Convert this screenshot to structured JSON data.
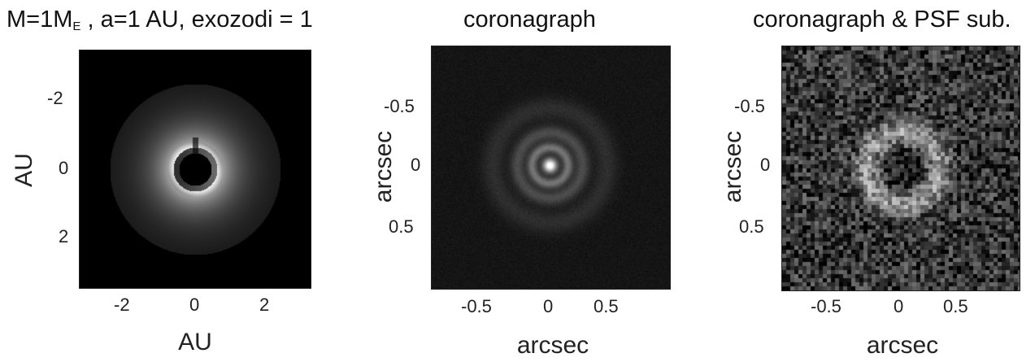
{
  "figure": {
    "panels": [
      {
        "id": "model",
        "title_main": "M=1M",
        "title_sub": "E",
        "title_rest": " , a=1 AU, exozodi = 1",
        "xlabel": "AU",
        "ylabel": "AU",
        "xticks": [
          "-2",
          "0",
          "2"
        ],
        "yticks": [
          "-2",
          "0",
          "2"
        ],
        "render": "ring-model"
      },
      {
        "id": "coronagraph",
        "title_main": "coronagraph",
        "title_sub": "",
        "title_rest": "",
        "xlabel": "arcsec",
        "ylabel": "arcsec",
        "xticks": [
          "-0.5",
          "0",
          "0.5"
        ],
        "yticks": [
          "-0.5",
          "0",
          "0.5"
        ],
        "render": "psf"
      },
      {
        "id": "psf-sub",
        "title_main": "coronagraph & PSF sub.",
        "title_sub": "",
        "title_rest": "",
        "xlabel": "arcsec",
        "ylabel": "arcsec",
        "xticks": [
          "-0.5",
          "0",
          "0.5"
        ],
        "yticks": [
          "-0.5",
          "0",
          "0.5"
        ],
        "render": "noisy-ring"
      }
    ]
  }
}
